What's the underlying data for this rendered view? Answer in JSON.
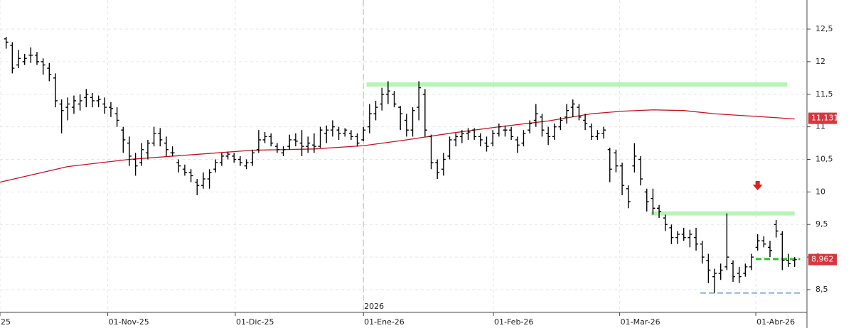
{
  "chart_data": {
    "type": "ohlc",
    "xlim": [
      -1,
      130
    ],
    "ylim": [
      8.151,
      12.947
    ],
    "yticks": [
      {
        "value": 8.5,
        "label": "8,5"
      },
      9,
      {
        "value": 9.5,
        "label": "9,5"
      },
      10,
      {
        "value": 10.5,
        "label": "10,5"
      },
      11,
      {
        "value": 11.5,
        "label": "11,5"
      },
      12,
      {
        "value": 12.5,
        "label": "12,5"
      }
    ],
    "xticks": [
      {
        "value": -1,
        "label": "25"
      },
      {
        "value": 16.5,
        "label": "01-Nov-25"
      },
      {
        "value": 37.2,
        "label": "01-Dic-25"
      },
      {
        "value": 58,
        "label": "01-Ene-26"
      },
      {
        "value": 79.1,
        "label": "01-Feb-26"
      },
      {
        "value": 99.6,
        "label": "01-Mar-26"
      },
      {
        "value": 121.7,
        "label": "01-Abr-26"
      }
    ],
    "grid": true,
    "color": "#000000",
    "ohlc": [
      [
        12.35,
        12.38,
        12.2,
        12.3
      ],
      [
        12.25,
        12.3,
        11.82,
        11.9
      ],
      [
        11.95,
        12.18,
        11.9,
        12.05
      ],
      [
        12.0,
        12.12,
        11.95,
        12.05
      ],
      [
        12.1,
        12.22,
        11.98,
        12.1
      ],
      [
        12.1,
        12.15,
        11.95,
        12.0
      ],
      [
        12.0,
        12.05,
        11.8,
        11.95
      ],
      [
        11.9,
        11.98,
        11.7,
        11.8
      ],
      [
        11.75,
        11.82,
        11.3,
        11.4
      ],
      [
        11.35,
        11.42,
        10.9,
        11.25
      ],
      [
        11.3,
        11.45,
        11.1,
        11.35
      ],
      [
        11.3,
        11.48,
        11.2,
        11.4
      ],
      [
        11.35,
        11.5,
        11.25,
        11.4
      ],
      [
        11.45,
        11.58,
        11.3,
        11.5
      ],
      [
        11.45,
        11.52,
        11.3,
        11.4
      ],
      [
        11.4,
        11.48,
        11.3,
        11.42
      ],
      [
        11.35,
        11.45,
        11.2,
        11.3
      ],
      [
        11.3,
        11.38,
        11.15,
        11.28
      ],
      [
        11.2,
        11.3,
        11.0,
        11.1
      ],
      [
        10.95,
        11.0,
        10.6,
        10.8
      ],
      [
        10.75,
        10.85,
        10.4,
        10.55
      ],
      [
        10.5,
        10.6,
        10.25,
        10.4
      ],
      [
        10.45,
        10.75,
        10.4,
        10.65
      ],
      [
        10.6,
        10.8,
        10.5,
        10.75
      ],
      [
        10.75,
        11.0,
        10.7,
        10.9
      ],
      [
        10.9,
        10.98,
        10.7,
        10.8
      ],
      [
        10.75,
        10.85,
        10.55,
        10.65
      ],
      [
        10.6,
        10.7,
        10.55,
        10.6
      ],
      [
        10.45,
        10.5,
        10.3,
        10.4
      ],
      [
        10.35,
        10.42,
        10.25,
        10.3
      ],
      [
        10.3,
        10.35,
        10.15,
        10.25
      ],
      [
        10.15,
        10.2,
        9.95,
        10.1
      ],
      [
        10.1,
        10.3,
        10.05,
        10.2
      ],
      [
        10.2,
        10.35,
        10.05,
        10.3
      ],
      [
        10.35,
        10.5,
        10.3,
        10.45
      ],
      [
        10.45,
        10.6,
        10.4,
        10.55
      ],
      [
        10.55,
        10.62,
        10.5,
        10.58
      ],
      [
        10.55,
        10.6,
        10.45,
        10.5
      ],
      [
        10.5,
        10.55,
        10.4,
        10.45
      ],
      [
        10.4,
        10.5,
        10.35,
        10.45
      ],
      [
        10.45,
        10.65,
        10.4,
        10.6
      ],
      [
        10.65,
        10.95,
        10.6,
        10.8
      ],
      [
        10.8,
        10.92,
        10.75,
        10.85
      ],
      [
        10.85,
        10.9,
        10.7,
        10.75
      ],
      [
        10.7,
        10.75,
        10.6,
        10.65
      ],
      [
        10.6,
        10.7,
        10.55,
        10.65
      ],
      [
        10.7,
        10.88,
        10.65,
        10.8
      ],
      [
        10.8,
        10.9,
        10.7,
        10.78
      ],
      [
        10.75,
        10.95,
        10.55,
        10.7
      ],
      [
        10.7,
        10.85,
        10.6,
        10.75
      ],
      [
        10.72,
        10.9,
        10.6,
        10.7
      ],
      [
        10.7,
        11.0,
        10.68,
        10.95
      ],
      [
        10.9,
        11.02,
        10.75,
        10.95
      ],
      [
        10.95,
        11.1,
        10.85,
        11.0
      ],
      [
        10.95,
        11.0,
        10.8,
        10.9
      ],
      [
        10.9,
        10.98,
        10.85,
        10.95
      ],
      [
        10.9,
        10.95,
        10.8,
        10.85
      ],
      [
        10.85,
        10.9,
        10.7,
        10.75
      ],
      [
        10.8,
        11.0,
        10.78,
        10.95
      ],
      [
        11.0,
        11.35,
        10.9,
        11.2
      ],
      [
        11.2,
        11.4,
        11.1,
        11.3
      ],
      [
        11.35,
        11.6,
        11.25,
        11.5
      ],
      [
        11.5,
        11.7,
        11.35,
        11.55
      ],
      [
        11.5,
        11.55,
        11.3,
        11.35
      ],
      [
        11.3,
        11.32,
        10.95,
        11.2
      ],
      [
        11.1,
        11.2,
        10.85,
        10.95
      ],
      [
        10.95,
        11.3,
        10.85,
        11.25
      ],
      [
        11.3,
        11.7,
        11.1,
        11.6
      ],
      [
        11.5,
        11.58,
        10.85,
        10.95
      ],
      [
        10.85,
        10.88,
        10.35,
        10.45
      ],
      [
        10.45,
        10.5,
        10.2,
        10.3
      ],
      [
        10.35,
        10.6,
        10.25,
        10.5
      ],
      [
        10.55,
        10.85,
        10.5,
        10.8
      ],
      [
        10.8,
        10.9,
        10.7,
        10.85
      ],
      [
        10.85,
        10.95,
        10.75,
        10.9
      ],
      [
        10.9,
        10.98,
        10.8,
        10.92
      ],
      [
        10.95,
        10.98,
        10.8,
        10.85
      ],
      [
        10.85,
        10.9,
        10.7,
        10.8
      ],
      [
        10.75,
        10.85,
        10.62,
        10.7
      ],
      [
        10.75,
        10.95,
        10.7,
        10.9
      ],
      [
        10.9,
        11.05,
        10.85,
        11.0
      ],
      [
        10.95,
        11.02,
        10.85,
        10.95
      ],
      [
        10.95,
        11.0,
        10.8,
        10.85
      ],
      [
        10.8,
        10.85,
        10.6,
        10.72
      ],
      [
        10.75,
        10.95,
        10.7,
        10.9
      ],
      [
        10.95,
        11.1,
        10.9,
        11.05
      ],
      [
        11.1,
        11.35,
        11.0,
        11.2
      ],
      [
        11.15,
        11.2,
        10.85,
        10.95
      ],
      [
        10.9,
        11.0,
        10.72,
        10.85
      ],
      [
        10.85,
        11.05,
        10.8,
        11.0
      ],
      [
        11.0,
        11.15,
        10.95,
        11.1
      ],
      [
        11.15,
        11.35,
        11.05,
        11.25
      ],
      [
        11.3,
        11.42,
        11.15,
        11.35
      ],
      [
        11.3,
        11.35,
        11.1,
        11.15
      ],
      [
        11.1,
        11.2,
        10.95,
        11.05
      ],
      [
        11.0,
        11.05,
        10.8,
        10.85
      ],
      [
        10.85,
        10.95,
        10.8,
        10.9
      ],
      [
        10.9,
        11.0,
        10.82,
        10.95
      ],
      [
        10.65,
        10.68,
        10.15,
        10.35
      ],
      [
        10.6,
        10.65,
        10.3,
        10.4
      ],
      [
        10.4,
        10.45,
        9.95,
        10.1
      ],
      [
        10.05,
        10.1,
        9.75,
        9.85
      ],
      [
        10.4,
        10.75,
        10.3,
        10.55
      ],
      [
        10.5,
        10.55,
        10.1,
        10.2
      ],
      [
        10.0,
        10.05,
        9.7,
        9.85
      ],
      [
        9.9,
        10.05,
        9.65,
        9.75
      ],
      [
        9.75,
        9.8,
        9.6,
        9.7
      ],
      [
        9.6,
        9.65,
        9.4,
        9.5
      ],
      [
        9.45,
        9.5,
        9.2,
        9.3
      ],
      [
        9.3,
        9.4,
        9.2,
        9.35
      ],
      [
        9.35,
        9.45,
        9.25,
        9.3
      ],
      [
        9.3,
        9.42,
        9.15,
        9.35
      ],
      [
        9.3,
        9.45,
        9.1,
        9.2
      ],
      [
        9.2,
        9.25,
        8.9,
        9.0
      ],
      [
        8.95,
        9.05,
        8.6,
        8.8
      ],
      [
        8.7,
        8.82,
        8.45,
        8.75
      ],
      [
        8.75,
        8.9,
        8.65,
        8.8
      ],
      [
        8.85,
        9.67,
        8.8,
        9.0
      ],
      [
        8.9,
        8.95,
        8.62,
        8.7
      ],
      [
        8.75,
        8.85,
        8.6,
        8.7
      ],
      [
        8.75,
        8.9,
        8.7,
        8.85
      ],
      [
        8.85,
        9.05,
        8.8,
        9.0
      ],
      [
        9.15,
        9.35,
        9.1,
        9.25
      ],
      [
        9.25,
        9.32,
        9.15,
        9.2
      ],
      [
        9.15,
        9.25,
        9.0,
        9.1
      ],
      [
        9.5,
        9.57,
        9.3,
        9.4
      ],
      [
        9.35,
        9.4,
        8.8,
        8.95
      ],
      [
        8.95,
        9.05,
        8.85,
        8.9
      ],
      [
        8.95,
        9.0,
        8.85,
        8.962
      ]
    ],
    "moving_average": {
      "color": "#c0151f",
      "x": [
        -1,
        10,
        20,
        30,
        40,
        50,
        58,
        65,
        72,
        80,
        88,
        95,
        100,
        105,
        110,
        115,
        120,
        125,
        128
      ],
      "values": [
        10.15,
        10.39,
        10.5,
        10.57,
        10.64,
        10.66,
        10.71,
        10.8,
        10.9,
        11.0,
        11.09,
        11.2,
        11.24,
        11.26,
        11.25,
        11.2,
        11.17,
        11.14,
        11.12
      ]
    },
    "levels": [
      {
        "value": 11.65,
        "x": [
          58.5,
          126.8
        ],
        "color": "#b9f3b9",
        "style": "solid"
      },
      {
        "value": 9.67,
        "x": [
          104.7,
          128
        ],
        "color": "#b9f3b9",
        "style": "solid"
      },
      {
        "value": 8.97,
        "x": [
          121.7,
          128.9
        ],
        "color": "#22cc22",
        "style": "dashed"
      },
      {
        "value": 8.45,
        "x": [
          112.7,
          128.9
        ],
        "color": "#a9c8e6",
        "style": "dashed"
      }
    ],
    "price_labels": [
      {
        "value": 11.131,
        "label": "11,131"
      },
      {
        "value": 8.962,
        "label": "8,962"
      }
    ],
    "price_label_color": "#d9363e",
    "signal": {
      "x": 122,
      "value": 10.08,
      "color": "#e02020"
    },
    "year_marker": {
      "x": 58,
      "label": "2026"
    }
  }
}
